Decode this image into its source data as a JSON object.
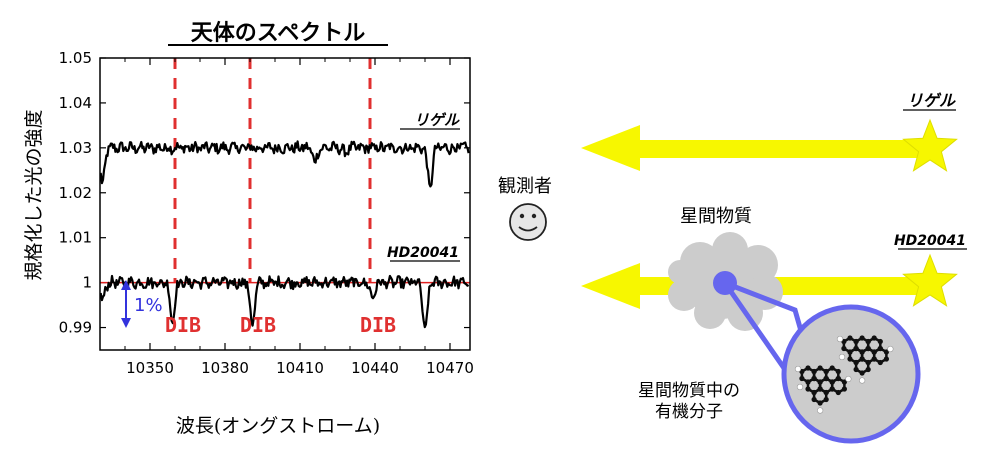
{
  "chart_data": {
    "type": "line",
    "title": "天体のスペクトル",
    "xlabel": "波長(オングストローム)",
    "ylabel": "規格化した光の強度",
    "xlim": [
      10330,
      10478
    ],
    "ylim": [
      0.985,
      1.05
    ],
    "x_ticks": [
      10350,
      10380,
      10410,
      10440,
      10470
    ],
    "y_ticks": [
      0.99,
      1,
      1.01,
      1.02,
      1.03,
      1.04,
      1.05
    ],
    "y_tick_labels": [
      "0.99",
      "1",
      "1.01",
      "1.02",
      "1.03",
      "1.04",
      "1.05"
    ],
    "series": [
      {
        "name": "リゲル",
        "baseline": 1.03,
        "color": "#000000",
        "dips": [
          [
            10331,
            1.022
          ],
          [
            10416,
            1.027
          ],
          [
            10428,
            1.029
          ],
          [
            10462,
            1.021
          ]
        ]
      },
      {
        "name": "HD20041",
        "baseline": 1.0,
        "color": "#000000",
        "dips": [
          [
            10331,
            0.996
          ],
          [
            10359,
            0.9915
          ],
          [
            10391,
            0.9905
          ],
          [
            10439,
            0.9965
          ],
          [
            10460,
            0.989
          ]
        ]
      }
    ],
    "reference_line": {
      "y": 1.0,
      "color": "#e02020"
    },
    "dib_lines": [
      10360,
      10390,
      10438
    ],
    "dib_label": "DIB",
    "scale_bar_label": "1%",
    "grid": false
  },
  "diagram": {
    "observer_label": "観測者",
    "rigel_label": "リゲル",
    "hd_label": "HD20041",
    "cloud_label": "星間物質",
    "molecule_label_line1": "星間物質中の",
    "molecule_label_line2": "有機分子",
    "colors": {
      "arrow": "#f7f700",
      "star": "#f7f700",
      "cloud": "#cccccc",
      "zoom": "#6666ee",
      "dib": "#e03030",
      "scale_bar": "#3333dd"
    }
  }
}
